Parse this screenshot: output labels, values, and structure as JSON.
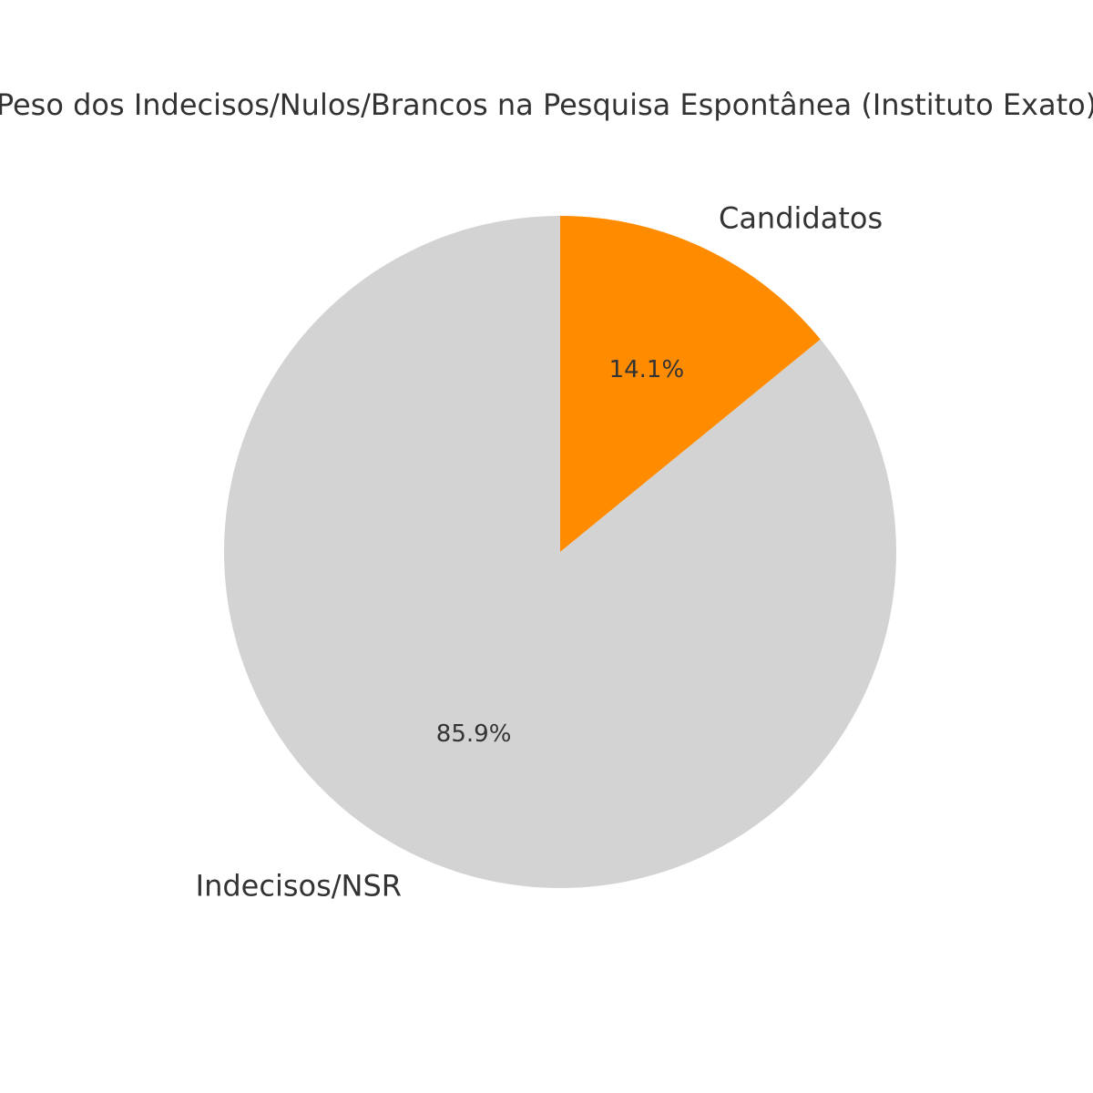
{
  "chart_data": {
    "type": "pie",
    "title": "Peso dos Indecisos/Nulos/Brancos na Pesquisa Espontânea (Instituto Exato)",
    "slices": [
      {
        "label": "Candidatos",
        "value": 14.1,
        "pct_label": "14.1%",
        "color": "#ff8c00"
      },
      {
        "label": "Indecisos/NSR",
        "value": 85.9,
        "pct_label": "85.9%",
        "color": "#d3d3d3"
      }
    ],
    "start_angle": "top",
    "direction": "clockwise"
  }
}
